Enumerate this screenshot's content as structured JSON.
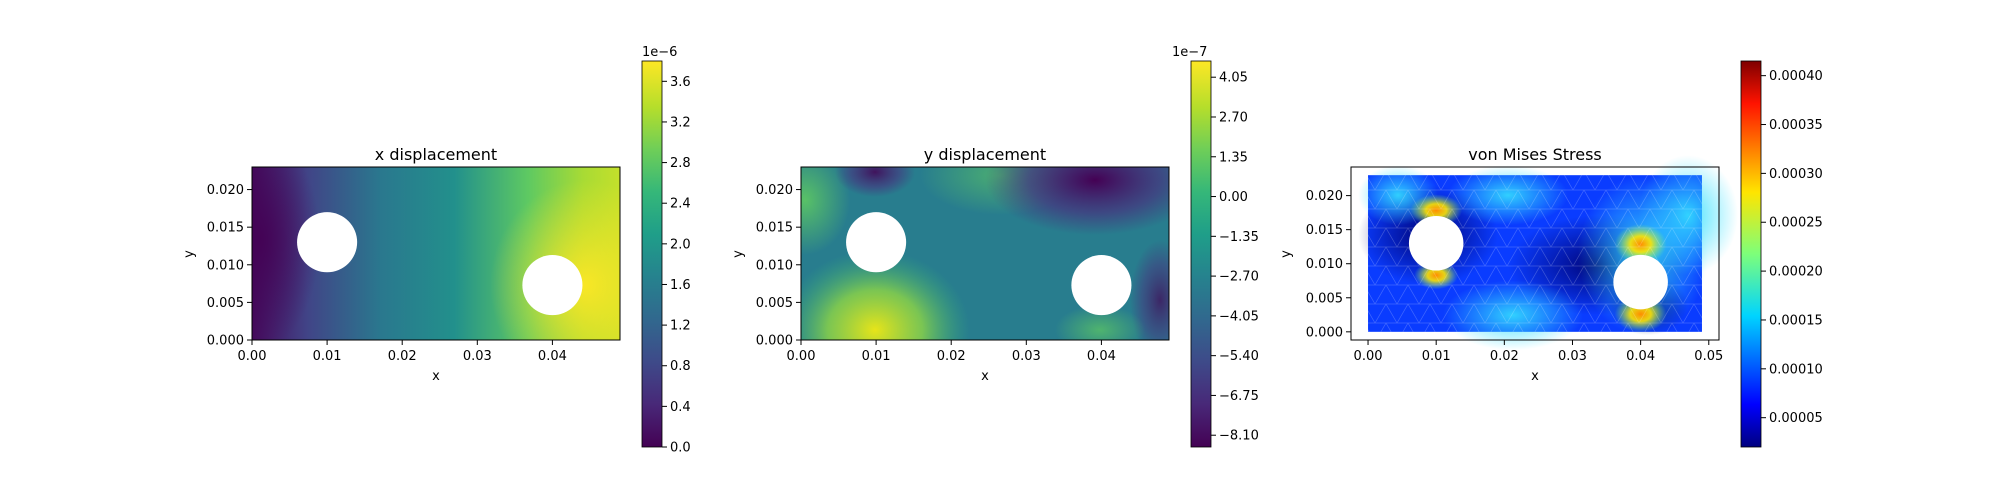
{
  "chart_data": [
    {
      "type": "heatmap",
      "title": "x displacement",
      "xlabel": "x",
      "ylabel": "y",
      "xlim": [
        0.0,
        0.049
      ],
      "ylim": [
        0.0,
        0.023
      ],
      "x_ticks": [
        "0.00",
        "0.01",
        "0.02",
        "0.03",
        "0.04"
      ],
      "y_ticks": [
        "0.000",
        "0.005",
        "0.010",
        "0.015",
        "0.020"
      ],
      "colormap": "viridis",
      "colorbar": {
        "range": [
          0.0,
          3.8
        ],
        "exponent": "1e−6",
        "ticks": [
          "0.0",
          "0.4",
          "0.8",
          "1.2",
          "1.6",
          "2.0",
          "2.4",
          "2.8",
          "3.2",
          "3.6"
        ]
      },
      "holes": [
        {
          "x": 0.01,
          "y": 0.013,
          "r": 0.004
        },
        {
          "x": 0.04,
          "y": 0.0073,
          "r": 0.004
        }
      ]
    },
    {
      "type": "heatmap",
      "title": "y displacement",
      "xlabel": "x",
      "ylabel": "y",
      "xlim": [
        0.0,
        0.049
      ],
      "ylim": [
        0.0,
        0.023
      ],
      "x_ticks": [
        "0.00",
        "0.01",
        "0.02",
        "0.03",
        "0.04"
      ],
      "y_ticks": [
        "0.000",
        "0.005",
        "0.010",
        "0.015",
        "0.020"
      ],
      "colormap": "viridis",
      "colorbar": {
        "range": [
          -8.5,
          4.6
        ],
        "exponent": "1e−7",
        "ticks": [
          "−8.10",
          "−6.75",
          "−5.40",
          "−4.05",
          "−2.70",
          "−1.35",
          "0.00",
          "1.35",
          "2.70",
          "4.05"
        ]
      },
      "holes": [
        {
          "x": 0.01,
          "y": 0.013,
          "r": 0.004
        },
        {
          "x": 0.04,
          "y": 0.0073,
          "r": 0.004
        }
      ]
    },
    {
      "type": "heatmap",
      "title": "von Mises Stress",
      "xlabel": "x",
      "ylabel": "y",
      "xlim": [
        -0.0025,
        0.0515
      ],
      "ylim": [
        -0.0012,
        0.0242
      ],
      "x_ticks": [
        "0.00",
        "0.01",
        "0.02",
        "0.03",
        "0.04",
        "0.05"
      ],
      "y_ticks": [
        "0.000",
        "0.005",
        "0.010",
        "0.015",
        "0.020"
      ],
      "colormap": "jet",
      "mesh": "triangular",
      "colorbar": {
        "range": [
          2e-05,
          0.000415
        ],
        "exponent": "",
        "ticks": [
          "0.00005",
          "0.00010",
          "0.00015",
          "0.00020",
          "0.00025",
          "0.00030",
          "0.00035",
          "0.00040"
        ]
      },
      "holes": [
        {
          "x": 0.01,
          "y": 0.013,
          "r": 0.004
        },
        {
          "x": 0.04,
          "y": 0.0073,
          "r": 0.004
        }
      ]
    }
  ]
}
